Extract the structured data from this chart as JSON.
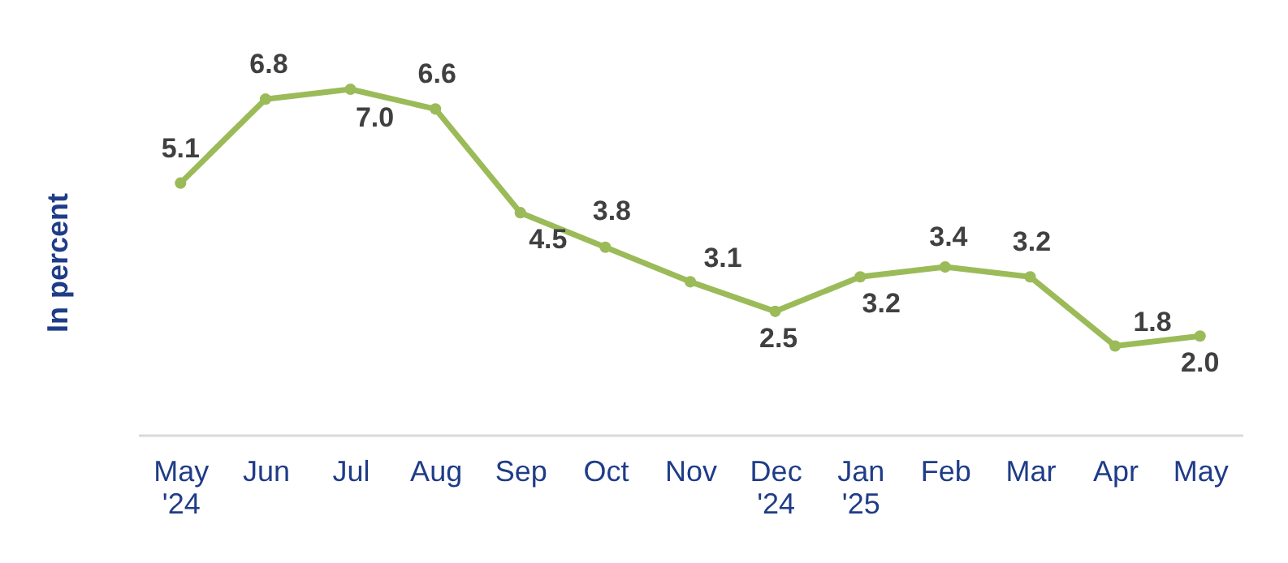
{
  "chart_data": {
    "type": "line",
    "ylabel": "In percent",
    "categories": [
      "May\n'24",
      "Jun",
      "Jul",
      "Aug",
      "Sep",
      "Oct",
      "Nov",
      "Dec\n'24",
      "Jan\n'25",
      "Feb",
      "Mar",
      "Apr",
      "May"
    ],
    "series": [
      {
        "color": "#9bbb59",
        "values": [
          5.1,
          6.8,
          7.0,
          6.6,
          4.5,
          3.8,
          3.1,
          2.5,
          3.2,
          3.4,
          3.2,
          1.8,
          2.0
        ],
        "value_labels": [
          "5.1",
          "6.8",
          "7.0",
          "6.6",
          "4.5",
          "3.8",
          "3.1",
          "2.5",
          "3.2",
          "3.4",
          "3.2",
          "1.8",
          "2.0"
        ]
      }
    ],
    "marker": "circle",
    "grid": false
  }
}
